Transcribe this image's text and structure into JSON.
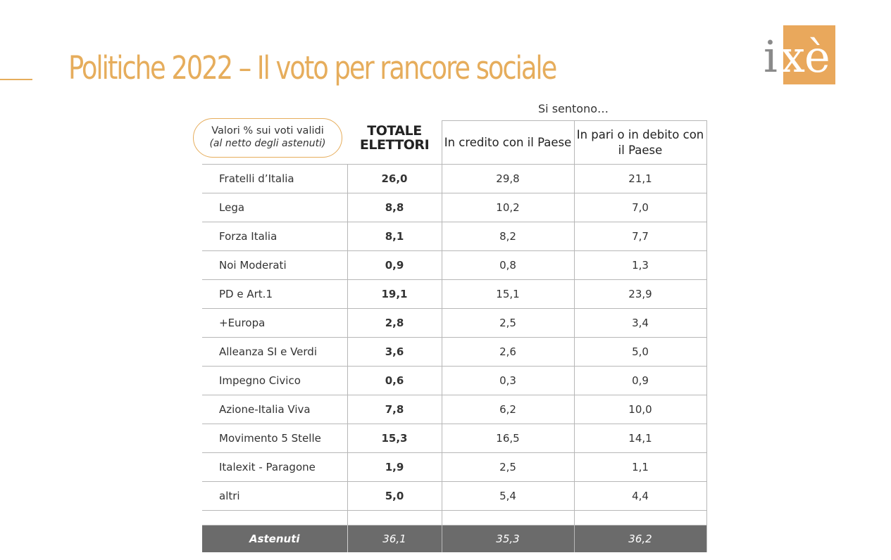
{
  "title": "Politiche 2022 – Il voto per rancore sociale",
  "brand": {
    "logo_text": "ixè",
    "accent_color": "#e6ad5c"
  },
  "table": {
    "group_header": "Si sentono…",
    "legend_line1": "Valori % sui voti validi",
    "legend_line2": "(al netto degli astenuti)",
    "total_header_line1": "TOTALE",
    "total_header_line2": "ELETTORI",
    "col_a_header": "In credito con il Paese",
    "col_b_header": "In pari o in debito con il Paese",
    "rows": [
      {
        "label": "Fratelli d’Italia",
        "total": "26,0",
        "a": "29,8",
        "b": "21,1"
      },
      {
        "label": "Lega",
        "total": "8,8",
        "a": "10,2",
        "b": "7,0"
      },
      {
        "label": "Forza Italia",
        "total": "8,1",
        "a": "8,2",
        "b": "7,7"
      },
      {
        "label": "Noi Moderati",
        "total": "0,9",
        "a": "0,8",
        "b": "1,3"
      },
      {
        "label": "PD e Art.1",
        "total": "19,1",
        "a": "15,1",
        "b": "23,9"
      },
      {
        "label": "+Europa",
        "total": "2,8",
        "a": "2,5",
        "b": "3,4"
      },
      {
        "label": "Alleanza SI e Verdi",
        "total": "3,6",
        "a": "2,6",
        "b": "5,0"
      },
      {
        "label": "Impegno Civico",
        "total": "0,6",
        "a": "0,3",
        "b": "0,9"
      },
      {
        "label": "Azione-Italia Viva",
        "total": "7,8",
        "a": "6,2",
        "b": "10,0"
      },
      {
        "label": "Movimento 5 Stelle",
        "total": "15,3",
        "a": "16,5",
        "b": "14,1"
      },
      {
        "label": "Italexit - Paragone",
        "total": "1,9",
        "a": "2,5",
        "b": "1,1"
      },
      {
        "label": "altri",
        "total": "5,0",
        "a": "5,4",
        "b": "4,4"
      }
    ],
    "footer": {
      "label": "Astenuti",
      "total": "36,1",
      "a": "35,3",
      "b": "36,2"
    }
  }
}
